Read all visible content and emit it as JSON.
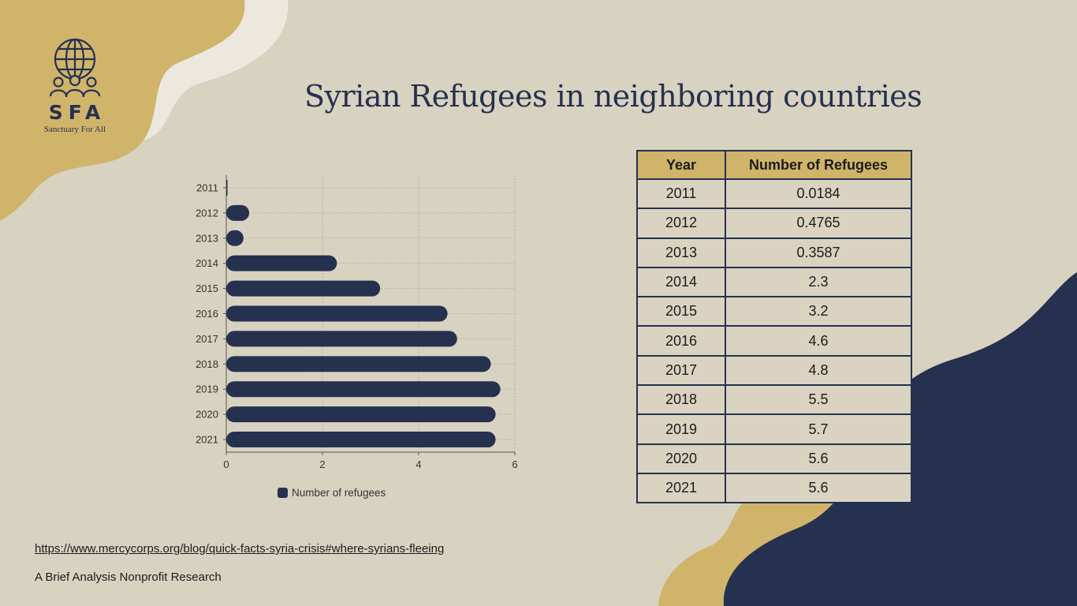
{
  "colors": {
    "background": "#d8d2c0",
    "navy": "#263150",
    "gold": "#cfb46a",
    "cream": "#ece8de"
  },
  "logo": {
    "icon": "globe-people-icon",
    "mark": "SFA",
    "tagline": "Sanctuary For All"
  },
  "title": "Syrian Refugees in neighboring countries",
  "chart_data": {
    "type": "bar",
    "orientation": "horizontal",
    "title": "",
    "xlabel": "",
    "ylabel": "",
    "categories": [
      "2011",
      "2012",
      "2013",
      "2014",
      "2015",
      "2016",
      "2017",
      "2018",
      "2019",
      "2020",
      "2021"
    ],
    "series": [
      {
        "name": "Number of refugees",
        "values": [
          0.0184,
          0.4765,
          0.3587,
          2.3,
          3.2,
          4.6,
          4.8,
          5.5,
          5.7,
          5.6,
          5.6
        ]
      }
    ],
    "xlim": [
      0,
      6
    ],
    "x_ticks": [
      "0",
      "2",
      "4",
      "6"
    ],
    "grid": true,
    "legend": "bottom"
  },
  "table": {
    "headers": [
      "Year",
      "Number of Refugees"
    ],
    "rows": [
      [
        "2011",
        "0.0184"
      ],
      [
        "2012",
        "0.4765"
      ],
      [
        "2013",
        "0.3587"
      ],
      [
        "2014",
        "2.3"
      ],
      [
        "2015",
        "3.2"
      ],
      [
        "2016",
        "4.6"
      ],
      [
        "2017",
        "4.8"
      ],
      [
        "2018",
        "5.5"
      ],
      [
        "2019",
        "5.7"
      ],
      [
        "2020",
        "5.6"
      ],
      [
        "2021",
        "5.6"
      ]
    ]
  },
  "footer": {
    "source_url": "https://www.mercycorps.org/blog/quick-facts-syria-crisis#where-syrians-fleeing",
    "org_line": "A Brief Analysis Nonprofit Research"
  }
}
